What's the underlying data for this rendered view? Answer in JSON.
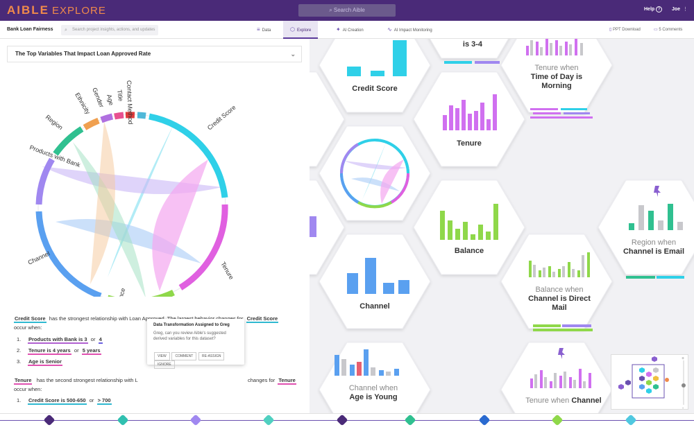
{
  "topbar": {
    "logo": "AIBLE",
    "logo_sub": "EXPLORE",
    "search_placeholder": "Search Aible",
    "help": "Help",
    "user": "Joe"
  },
  "subbar": {
    "project": "Bank Loan Fairness",
    "search_placeholder": "Search project insights, actions, and updates",
    "tabs": [
      "Data",
      "Explore",
      "AI Creation",
      "AI Impact Monitoring"
    ],
    "active_tab": "Explore",
    "ppt": "PPT Download",
    "comments": "5 Comments"
  },
  "left": {
    "question": "The Top Variables That Impact Loan Approved Rate",
    "chord_labels": [
      "Credit Score",
      "Tenure",
      "Balance",
      "Channel",
      "Products with Bank",
      "Region",
      "Ethnicity",
      "Gender",
      "Age",
      "Title",
      "Contact Method"
    ],
    "p1_a": "Credit Score",
    "p1_b": "has the strongest relationship with Loan Approved. The largest behavior changes for",
    "p1_c": "Credit Score",
    "p1_d": "occur when:",
    "list1": [
      {
        "n": "1.",
        "a": "Products with Bank is 3",
        "or": "or",
        "b": "4"
      },
      {
        "n": "2.",
        "a": "Tenure is 4 years",
        "or": "or",
        "b": "5 years"
      },
      {
        "n": "3.",
        "a": "Age is Senior",
        "or": "",
        "b": ""
      }
    ],
    "p2_a": "Tenure",
    "p2_b": "has the second strongest relationship with L",
    "p2_c": "derived variables for this dataset?",
    "p2_d": "occur when:",
    "p2_tenure2": "Tenure",
    "p2_changes": "changes for",
    "list2": [
      {
        "n": "1.",
        "a": "Credit Score is 500-650",
        "or": "or",
        "b": "> 700"
      }
    ]
  },
  "popup": {
    "title": "Data Transformation Assigned to Greg",
    "body": "Greg, can you review Aible's suggested derived variables for this dataset?",
    "buttons": [
      "VIEW",
      "COMMENT",
      "RE-ASSIGN",
      "IGNORE"
    ]
  },
  "hexes": [
    {
      "title": "Credit Score",
      "sub": ""
    },
    {
      "title": "Tenure",
      "sub": ""
    },
    {
      "title": "Balance",
      "sub": ""
    },
    {
      "title": "Channel",
      "sub": ""
    },
    {
      "title_pre": "Tenure when",
      "title": "Time of Day is Morning"
    },
    {
      "title_pre": "Region when",
      "title": "Channel is Email"
    },
    {
      "title_pre": "Balance when",
      "title": "Channel is Direct Mail"
    },
    {
      "title_pre": "Channel when",
      "title": "Age is Young"
    },
    {
      "title_pre": "Tenure when",
      "title": "Channel"
    },
    {
      "title_pre": "",
      "title": "is 3-4"
    }
  ],
  "colors": {
    "purple": "#4a2a78",
    "cyan": "#2fd0e8",
    "violet": "#d070f0",
    "green": "#8fd84a",
    "blue": "#5aa0f0",
    "teal": "#30c090",
    "grey": "#c8c8cc"
  }
}
